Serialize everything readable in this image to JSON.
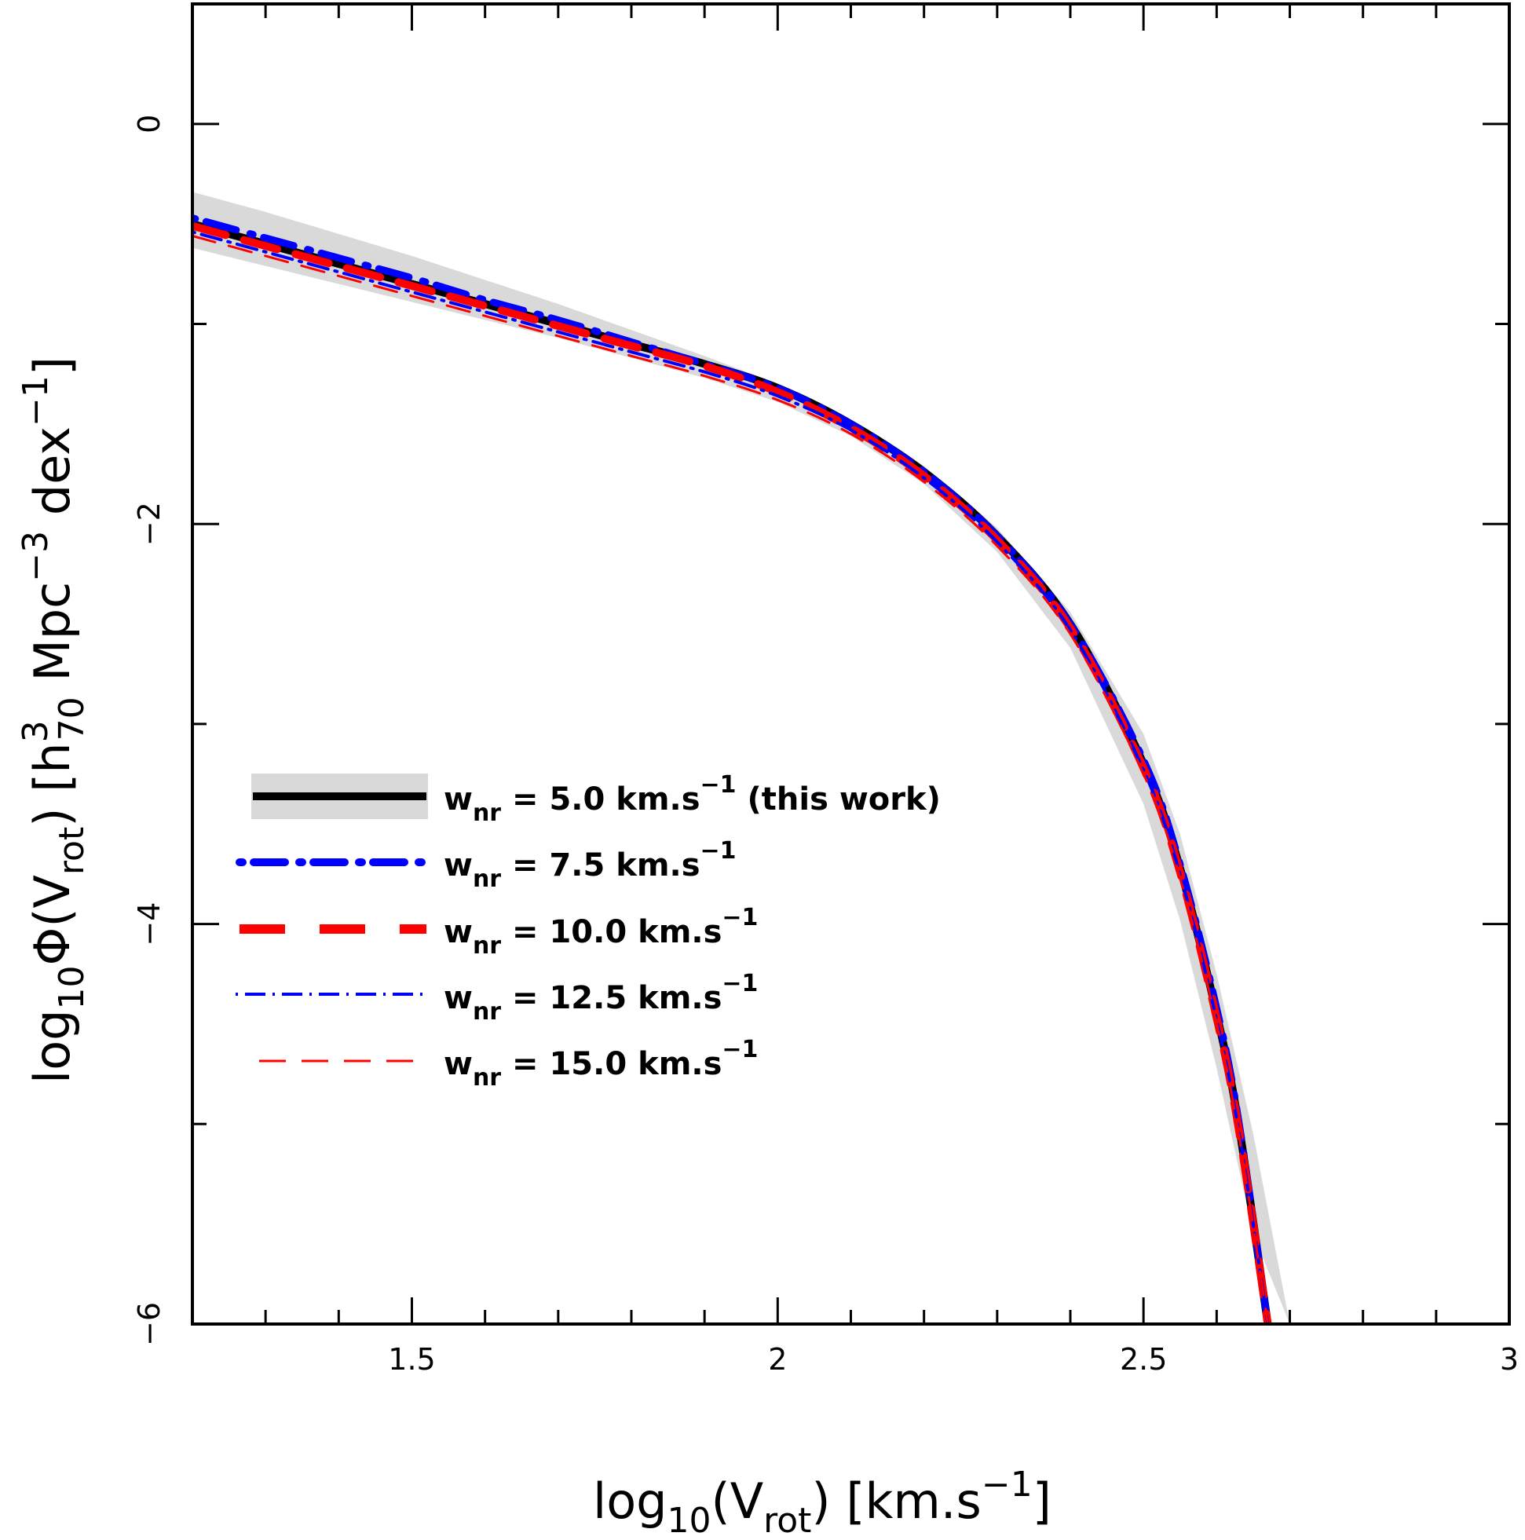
{
  "chart_data": {
    "type": "line",
    "title": "",
    "xlabel": {
      "prefix": "log",
      "sub": "10",
      "mid": "(V",
      "sub2": "rot",
      "suffix": ")  [km.s",
      "sup": "−1",
      "end": "]"
    },
    "ylabel": {
      "prefix": "log",
      "sub": "10",
      "mid": "Φ(V",
      "sub2": "rot",
      "mid2": ")  [h",
      "sup1": "3",
      "sub3": "70",
      "mid3": " Mpc",
      "sup2": "−3",
      "mid4": " dex",
      "sup3": "−1",
      "end": "]"
    },
    "xlim": [
      1.2,
      3.0
    ],
    "ylim": [
      -6.0,
      0.6
    ],
    "xticks_major": [
      1.5,
      2,
      2.5,
      3
    ],
    "xtick_labels": [
      "1.5",
      "2",
      "2.5",
      "3"
    ],
    "yticks_major": [
      0,
      -2,
      -4,
      -6
    ],
    "ytick_labels": [
      "0",
      "−2",
      "−4",
      "−6"
    ],
    "grid": false,
    "legend_position": "lower-left",
    "band": {
      "name": "uncertainty",
      "color": "#d9d9d9",
      "x": [
        1.2,
        1.3,
        1.4,
        1.5,
        1.6,
        1.7,
        1.8,
        1.9,
        2.0,
        2.1,
        2.2,
        2.3,
        2.4,
        2.5,
        2.55,
        2.6,
        2.65,
        2.7
      ],
      "y_upper": [
        -0.34,
        -0.44,
        -0.55,
        -0.66,
        -0.78,
        -0.9,
        -1.03,
        -1.16,
        -1.3,
        -1.48,
        -1.71,
        -2.02,
        -2.44,
        -3.05,
        -3.55,
        -4.25,
        -5.05,
        -6.0
      ],
      "y_lower": [
        -0.62,
        -0.71,
        -0.8,
        -0.89,
        -0.98,
        -1.07,
        -1.17,
        -1.27,
        -1.39,
        -1.56,
        -1.8,
        -2.14,
        -2.62,
        -3.4,
        -3.98,
        -4.72,
        -5.55,
        -6.0
      ]
    },
    "series": [
      {
        "name": "w_nr = 5.0 km/s (this work)",
        "color": "#000000",
        "width": 10,
        "dash": "",
        "x": [
          1.2,
          1.3,
          1.4,
          1.5,
          1.6,
          1.7,
          1.8,
          1.9,
          2.0,
          2.1,
          2.2,
          2.3,
          2.4,
          2.5,
          2.55,
          2.6,
          2.63,
          2.67
        ],
        "y": [
          -0.5,
          -0.6,
          -0.7,
          -0.8,
          -0.9,
          -1.0,
          -1.1,
          -1.2,
          -1.32,
          -1.5,
          -1.74,
          -2.06,
          -2.5,
          -3.2,
          -3.72,
          -4.45,
          -5.0,
          -6.0
        ]
      },
      {
        "name": "w_nr = 7.5 km/s",
        "color": "#0000ff",
        "width": 9,
        "dash": "4 14 40 18",
        "x": [
          1.2,
          1.3,
          1.4,
          1.5,
          1.6,
          1.7,
          1.8,
          1.9,
          2.0,
          2.1,
          2.2,
          2.3,
          2.4,
          2.5,
          2.55,
          2.6,
          2.63,
          2.67
        ],
        "y": [
          -0.47,
          -0.57,
          -0.67,
          -0.77,
          -0.88,
          -0.98,
          -1.09,
          -1.2,
          -1.32,
          -1.5,
          -1.74,
          -2.06,
          -2.5,
          -3.18,
          -3.7,
          -4.42,
          -4.98,
          -6.0
        ]
      },
      {
        "name": "w_nr = 10.0 km/s",
        "color": "#ff0000",
        "width": 10,
        "dash": "44 24",
        "x": [
          1.2,
          1.3,
          1.4,
          1.5,
          1.6,
          1.7,
          1.8,
          1.9,
          2.0,
          2.1,
          2.2,
          2.3,
          2.4,
          2.5,
          2.55,
          2.6,
          2.63,
          2.67
        ],
        "y": [
          -0.51,
          -0.61,
          -0.71,
          -0.81,
          -0.91,
          -1.01,
          -1.11,
          -1.21,
          -1.34,
          -1.52,
          -1.76,
          -2.08,
          -2.52,
          -3.22,
          -3.74,
          -4.47,
          -5.02,
          -6.0
        ]
      },
      {
        "name": "w_nr = 12.5 km/s",
        "color": "#0000ff",
        "width": 4,
        "dash": "3 9 26 9",
        "x": [
          1.2,
          1.3,
          1.4,
          1.5,
          1.6,
          1.7,
          1.8,
          1.9,
          2.0,
          2.1,
          2.2,
          2.3,
          2.4,
          2.5,
          2.55,
          2.6,
          2.63,
          2.67
        ],
        "y": [
          -0.54,
          -0.64,
          -0.74,
          -0.84,
          -0.94,
          -1.04,
          -1.14,
          -1.24,
          -1.36,
          -1.53,
          -1.77,
          -2.09,
          -2.53,
          -3.23,
          -3.75,
          -4.48,
          -5.03,
          -6.0
        ]
      },
      {
        "name": "w_nr = 15.0 km/s",
        "color": "#ff0000",
        "width": 3,
        "dash": "30 18",
        "x": [
          1.2,
          1.3,
          1.4,
          1.5,
          1.6,
          1.7,
          1.8,
          1.9,
          2.0,
          2.1,
          2.2,
          2.3,
          2.4,
          2.5,
          2.55,
          2.6,
          2.63,
          2.67
        ],
        "y": [
          -0.56,
          -0.66,
          -0.76,
          -0.86,
          -0.96,
          -1.06,
          -1.16,
          -1.26,
          -1.38,
          -1.55,
          -1.79,
          -2.11,
          -2.55,
          -3.25,
          -3.77,
          -4.5,
          -5.05,
          -6.0
        ]
      }
    ],
    "legend": [
      {
        "pre": "w",
        "sub": "nr",
        "text": " = 5.0 km.s",
        "sup": "−1",
        "post": " (this work)"
      },
      {
        "pre": "w",
        "sub": "nr",
        "text": " = 7.5 km.s",
        "sup": "−1",
        "post": ""
      },
      {
        "pre": "w",
        "sub": "nr",
        "text": " = 10.0 km.s",
        "sup": "−1",
        "post": ""
      },
      {
        "pre": "w",
        "sub": "nr",
        "text": " = 12.5 km.s",
        "sup": "−1",
        "post": ""
      },
      {
        "pre": "w",
        "sub": "nr",
        "text": " = 15.0 km.s",
        "sup": "−1",
        "post": ""
      }
    ]
  }
}
